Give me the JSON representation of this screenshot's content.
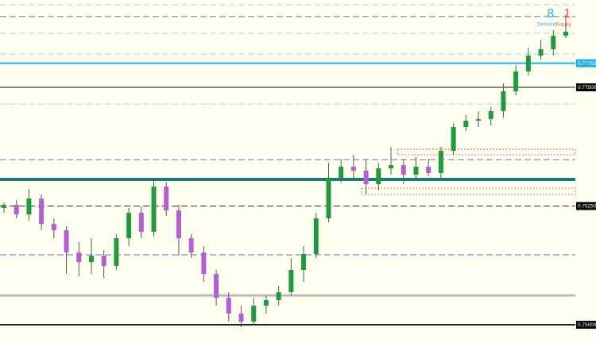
{
  "chart_data": {
    "type": "candlestick",
    "ylim": [
      0.74808,
      0.78419
    ],
    "up_color": "#1f9a3e",
    "down_color": "#b35fd3",
    "wick_color": "#555555",
    "open": [
      0.76229,
      0.76262,
      0.76162,
      0.76329,
      0.76062,
      0.75995,
      0.75761,
      0.7566,
      0.75727,
      0.75619,
      0.75911,
      0.76179,
      0.75978,
      0.76455,
      0.76204,
      0.75911,
      0.75761,
      0.75535,
      0.75284,
      0.75117,
      0.75033,
      0.75201,
      0.75259,
      0.75343,
      0.75577,
      0.75744,
      0.7612,
      0.76538,
      0.76664,
      0.76622,
      0.7648,
      0.76647,
      0.7668,
      0.7658,
      0.76664,
      0.76597,
      0.76831,
      0.77082,
      0.77149,
      0.77165,
      0.77249,
      0.77458,
      0.77667,
      0.77834,
      0.77901,
      0.78043
    ],
    "high": [
      0.76287,
      0.76313,
      0.7643,
      0.76371,
      0.7612,
      0.76037,
      0.75869,
      0.75911,
      0.75786,
      0.75953,
      0.76229,
      0.76246,
      0.76513,
      0.76496,
      0.76262,
      0.75953,
      0.75828,
      0.75577,
      0.75343,
      0.75201,
      0.75284,
      0.75309,
      0.7541,
      0.75702,
      0.75828,
      0.76179,
      0.76705,
      0.76747,
      0.76789,
      0.76747,
      0.76705,
      0.76873,
      0.76747,
      0.76764,
      0.76747,
      0.76873,
      0.77123,
      0.77207,
      0.77249,
      0.77291,
      0.77541,
      0.77734,
      0.77918,
      0.78001,
      0.78102,
      0.78269
    ],
    "low": [
      0.76179,
      0.7612,
      0.76095,
      0.75995,
      0.75911,
      0.75535,
      0.7551,
      0.75535,
      0.75493,
      0.75577,
      0.75828,
      0.75911,
      0.75928,
      0.76145,
      0.75727,
      0.75702,
      0.75451,
      0.75201,
      0.75033,
      0.74975,
      0.74992,
      0.75117,
      0.75201,
      0.75309,
      0.75451,
      0.75702,
      0.76078,
      0.76496,
      0.76538,
      0.76371,
      0.76413,
      0.7658,
      0.7648,
      0.76513,
      0.76563,
      0.76538,
      0.76789,
      0.7704,
      0.77082,
      0.77098,
      0.77182,
      0.77416,
      0.77625,
      0.77792,
      0.77834,
      0.78018
    ],
    "close": [
      0.76262,
      0.76162,
      0.76329,
      0.76062,
      0.75995,
      0.75761,
      0.7566,
      0.75727,
      0.75619,
      0.75911,
      0.76179,
      0.75978,
      0.76455,
      0.76204,
      0.75911,
      0.75761,
      0.75535,
      0.75284,
      0.75117,
      0.75033,
      0.75201,
      0.75259,
      0.75343,
      0.75577,
      0.75744,
      0.7612,
      0.76538,
      0.76664,
      0.76622,
      0.7648,
      0.76647,
      0.7668,
      0.7658,
      0.76664,
      0.76597,
      0.76831,
      0.77082,
      0.77149,
      0.77165,
      0.77249,
      0.77458,
      0.77667,
      0.77834,
      0.77901,
      0.78043,
      0.78085
    ],
    "levels": [
      {
        "value": 0.78369,
        "color": "#9fd8ee",
        "style": "dashed",
        "width": 1
      },
      {
        "value": 0.78244,
        "color": "#6b6fd8",
        "style": "dashed",
        "width": 1
      },
      {
        "value": 0.78068,
        "color": "#9fd8ee",
        "style": "dashed",
        "width": 1
      },
      {
        "value": 0.77851,
        "color": "#9fd8ee",
        "style": "dashed",
        "width": 1
      },
      {
        "value": 0.77753,
        "color": "#18b4e6",
        "style": "solid",
        "width": 2,
        "label": "0.77753"
      },
      {
        "value": 0.775,
        "color": "#111111",
        "style": "solid",
        "width": 1,
        "label": "0.77500"
      },
      {
        "value": 0.77324,
        "color": "#9fd8ee",
        "style": "dashed",
        "width": 1
      },
      {
        "value": 0.76739,
        "color": "#6b6fd8",
        "style": "dashed",
        "width": 1
      },
      {
        "value": 0.7653,
        "color": "#177a78",
        "style": "solid",
        "width": 4
      },
      {
        "value": 0.7625,
        "color": "#333333",
        "style": "dashed",
        "width": 1,
        "label": "0.76250"
      },
      {
        "value": 0.75736,
        "color": "#6b6fd8",
        "style": "dashed",
        "width": 1
      },
      {
        "value": 0.75309,
        "color": "#bbbbbb",
        "style": "solid",
        "width": 3
      },
      {
        "value": 0.75,
        "color": "#222222",
        "style": "solid",
        "width": 2,
        "label": "0.75000"
      }
    ],
    "zones": [
      {
        "low": 0.76789,
        "high": 0.76848,
        "color": "#e04040"
      },
      {
        "low": 0.76371,
        "high": 0.76438,
        "color": "#e04040"
      }
    ],
    "counters": [
      {
        "name": "Demand",
        "value": 8,
        "color": "#2ab0e8"
      },
      {
        "name": "Supply",
        "value": 1,
        "color": "#f05a4a"
      }
    ]
  }
}
